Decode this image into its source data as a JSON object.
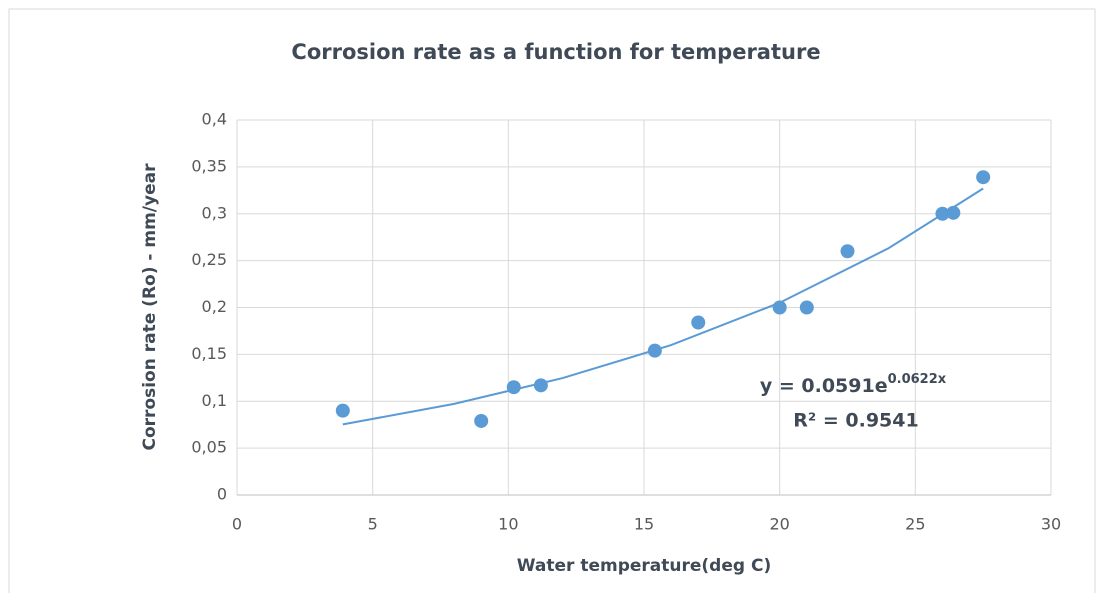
{
  "chart_data": {
    "type": "scatter",
    "title": "Corrosion rate as a function for temperature",
    "x_label": "Water temperature(deg C)",
    "y_label": "Corrosion rate (Ro) - mm/year",
    "x": [
      3.9,
      9,
      10.2,
      11.2,
      15.4,
      17,
      20,
      21,
      22.5,
      26,
      26.4,
      27.5
    ],
    "values": [
      0.09,
      0.079,
      0.115,
      0.117,
      0.154,
      0.184,
      0.2,
      0.2,
      0.26,
      0.3,
      0.301,
      0.339
    ],
    "color": "#5b9bd5",
    "trendline": {
      "color": "#5b9bd5",
      "x": [
        3.9,
        8,
        12,
        16,
        20,
        24,
        27.5
      ],
      "values": [
        0.0753,
        0.0972,
        0.1247,
        0.1599,
        0.2051,
        0.263,
        0.3269
      ],
      "equation": {
        "base": "y = 0.0591e",
        "exponent": "0.0622x"
      },
      "r_squared": "R² = 0.9541"
    },
    "xlim": [
      0,
      30
    ],
    "xticks": [
      0,
      5,
      10,
      15,
      20,
      25,
      30
    ],
    "ylim": [
      0,
      0.4
    ],
    "yticks": [
      0,
      {
        "value": 0.05,
        "label": "0,05"
      },
      {
        "value": 0.1,
        "label": "0,1"
      },
      {
        "value": 0.15,
        "label": "0,15"
      },
      {
        "value": 0.2,
        "label": "0,2"
      },
      {
        "value": 0.25,
        "label": "0,25"
      },
      {
        "value": 0.3,
        "label": "0,3"
      },
      {
        "value": 0.35,
        "label": "0,35"
      },
      {
        "value": 0.4,
        "label": "0,4"
      }
    ],
    "grid": true
  }
}
